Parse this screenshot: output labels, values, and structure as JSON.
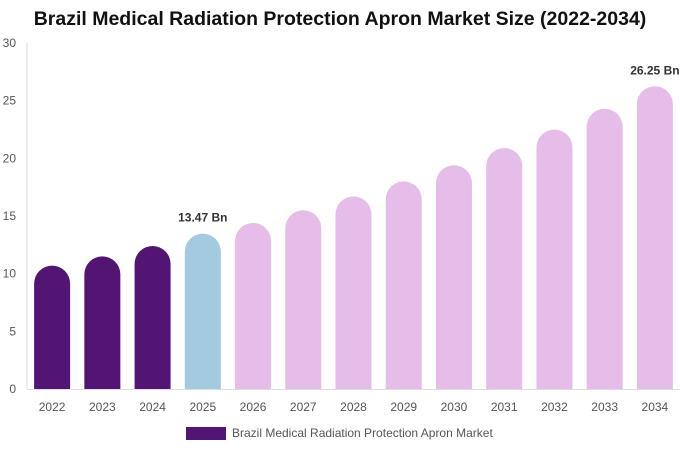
{
  "chart_data": {
    "type": "bar",
    "title": "Brazil Medical Radiation Protection Apron Market Size (2022-2034)",
    "xlabel": "",
    "ylabel": "",
    "ylim": [
      0,
      30
    ],
    "yticks": [
      "0",
      "5",
      "10",
      "15",
      "20",
      "25",
      "30"
    ],
    "grid": false,
    "legend_position": "bottom",
    "categories": [
      "2022",
      "2023",
      "2024",
      "2025",
      "2026",
      "2027",
      "2028",
      "2029",
      "2030",
      "2031",
      "2032",
      "2033",
      "2034"
    ],
    "series": [
      {
        "name": "Brazil Medical Radiation Protection Apron Market",
        "values": [
          10.7,
          11.5,
          12.4,
          13.47,
          14.4,
          15.5,
          16.7,
          18.0,
          19.4,
          20.9,
          22.5,
          24.3,
          26.25
        ]
      }
    ],
    "bar_colors": [
      "#521574",
      "#521574",
      "#521574",
      "#a3cadf",
      "#e6bde9",
      "#e6bde9",
      "#e6bde9",
      "#e6bde9",
      "#e6bde9",
      "#e6bde9",
      "#e6bde9",
      "#e6bde9",
      "#e6bde9"
    ],
    "legend_color": "#521574",
    "data_labels": [
      {
        "index": 3,
        "text": "13.47 Bn"
      },
      {
        "index": 12,
        "text": "26.25 Bn"
      }
    ]
  }
}
